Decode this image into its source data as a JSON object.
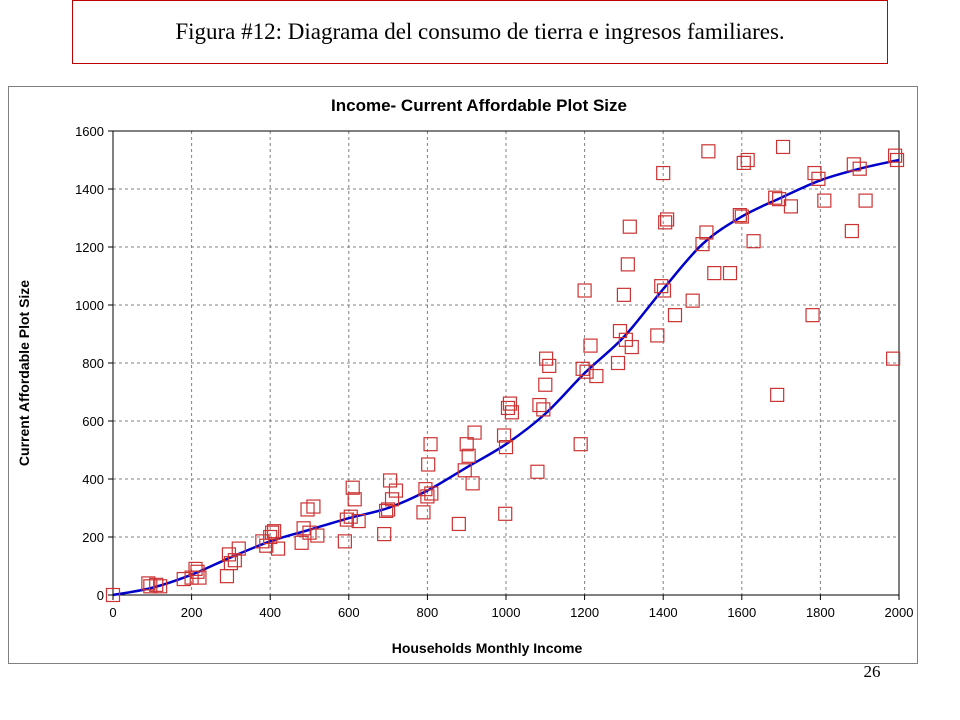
{
  "slide": {
    "caption": "Figura #12: Diagrama del consumo de tierra e ingresos familiares.",
    "page_number": "26"
  },
  "colors": {
    "points": "#cc3333",
    "curve": "#0000cc",
    "grid": "#808080",
    "axis": "#000000"
  },
  "chart_data": {
    "type": "scatter",
    "title": "Income- Current Affordable Plot Size",
    "xlabel": "Households Monthly Income",
    "ylabel": "Current Affordable Plot Size",
    "xlim": [
      0,
      2000
    ],
    "ylim": [
      0,
      1600
    ],
    "xticks": [
      0,
      200,
      400,
      600,
      800,
      1000,
      1200,
      1400,
      1600,
      1800,
      2000
    ],
    "yticks": [
      0,
      200,
      400,
      600,
      800,
      1000,
      1200,
      1400,
      1600
    ],
    "grid": true,
    "legend": "none",
    "series": [
      {
        "kind": "scatter",
        "marker": "square",
        "points": [
          [
            0,
            0
          ],
          [
            90,
            40
          ],
          [
            95,
            30
          ],
          [
            110,
            35
          ],
          [
            120,
            30
          ],
          [
            180,
            55
          ],
          [
            200,
            60
          ],
          [
            210,
            90
          ],
          [
            215,
            80
          ],
          [
            220,
            60
          ],
          [
            290,
            65
          ],
          [
            295,
            140
          ],
          [
            300,
            110
          ],
          [
            310,
            120
          ],
          [
            320,
            160
          ],
          [
            380,
            185
          ],
          [
            390,
            170
          ],
          [
            400,
            200
          ],
          [
            405,
            215
          ],
          [
            410,
            220
          ],
          [
            420,
            160
          ],
          [
            480,
            180
          ],
          [
            485,
            230
          ],
          [
            495,
            295
          ],
          [
            500,
            215
          ],
          [
            510,
            305
          ],
          [
            520,
            205
          ],
          [
            590,
            185
          ],
          [
            595,
            260
          ],
          [
            605,
            270
          ],
          [
            610,
            370
          ],
          [
            615,
            330
          ],
          [
            625,
            255
          ],
          [
            690,
            210
          ],
          [
            695,
            290
          ],
          [
            700,
            295
          ],
          [
            705,
            395
          ],
          [
            710,
            330
          ],
          [
            720,
            360
          ],
          [
            790,
            285
          ],
          [
            795,
            365
          ],
          [
            800,
            340
          ],
          [
            802,
            450
          ],
          [
            808,
            520
          ],
          [
            810,
            350
          ],
          [
            880,
            245
          ],
          [
            895,
            430
          ],
          [
            900,
            520
          ],
          [
            905,
            480
          ],
          [
            915,
            385
          ],
          [
            920,
            560
          ],
          [
            995,
            550
          ],
          [
            998,
            280
          ],
          [
            1000,
            510
          ],
          [
            1005,
            645
          ],
          [
            1010,
            660
          ],
          [
            1015,
            630
          ],
          [
            1080,
            425
          ],
          [
            1085,
            655
          ],
          [
            1095,
            640
          ],
          [
            1100,
            725
          ],
          [
            1102,
            815
          ],
          [
            1110,
            790
          ],
          [
            1190,
            520
          ],
          [
            1195,
            780
          ],
          [
            1200,
            1050
          ],
          [
            1205,
            770
          ],
          [
            1215,
            860
          ],
          [
            1230,
            755
          ],
          [
            1285,
            800
          ],
          [
            1290,
            910
          ],
          [
            1300,
            1035
          ],
          [
            1305,
            880
          ],
          [
            1310,
            1140
          ],
          [
            1315,
            1270
          ],
          [
            1320,
            855
          ],
          [
            1385,
            895
          ],
          [
            1395,
            1065
          ],
          [
            1400,
            1455
          ],
          [
            1402,
            1050
          ],
          [
            1405,
            1285
          ],
          [
            1410,
            1295
          ],
          [
            1430,
            965
          ],
          [
            1475,
            1015
          ],
          [
            1500,
            1210
          ],
          [
            1510,
            1250
          ],
          [
            1515,
            1530
          ],
          [
            1530,
            1110
          ],
          [
            1570,
            1110
          ],
          [
            1595,
            1310
          ],
          [
            1600,
            1305
          ],
          [
            1605,
            1490
          ],
          [
            1615,
            1500
          ],
          [
            1630,
            1220
          ],
          [
            1685,
            1370
          ],
          [
            1690,
            690
          ],
          [
            1695,
            1365
          ],
          [
            1705,
            1545
          ],
          [
            1725,
            1340
          ],
          [
            1780,
            965
          ],
          [
            1785,
            1455
          ],
          [
            1795,
            1435
          ],
          [
            1810,
            1360
          ],
          [
            1880,
            1255
          ],
          [
            1885,
            1485
          ],
          [
            1900,
            1470
          ],
          [
            1915,
            1360
          ],
          [
            1985,
            815
          ],
          [
            1990,
            1515
          ],
          [
            1995,
            1500
          ]
        ]
      },
      {
        "kind": "line",
        "smooth": true,
        "points": [
          [
            0,
            0
          ],
          [
            100,
            25
          ],
          [
            200,
            70
          ],
          [
            300,
            130
          ],
          [
            400,
            185
          ],
          [
            500,
            225
          ],
          [
            600,
            265
          ],
          [
            700,
            300
          ],
          [
            800,
            360
          ],
          [
            900,
            440
          ],
          [
            1000,
            520
          ],
          [
            1100,
            625
          ],
          [
            1200,
            765
          ],
          [
            1300,
            890
          ],
          [
            1400,
            1055
          ],
          [
            1500,
            1210
          ],
          [
            1600,
            1305
          ],
          [
            1700,
            1370
          ],
          [
            1800,
            1430
          ],
          [
            1900,
            1470
          ],
          [
            2000,
            1500
          ]
        ]
      }
    ]
  }
}
